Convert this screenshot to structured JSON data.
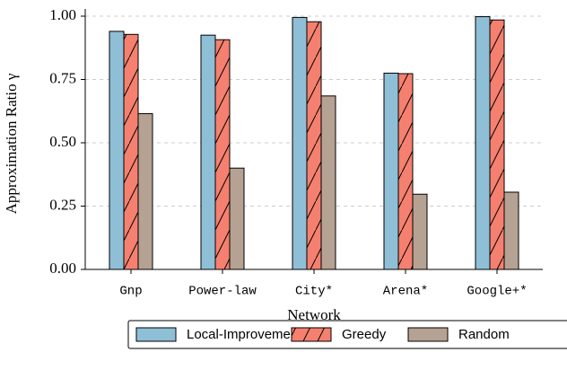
{
  "chart_data": {
    "type": "bar",
    "ylabel": "Approximation Ratio γ",
    "xlabel": "Network",
    "categories": [
      "Gnp",
      "Power-law",
      "City*",
      "Arena*",
      "Google+*"
    ],
    "series": [
      {
        "name": "Local-Improvement",
        "color": "#8fbfd6",
        "hatch": "",
        "values": [
          0.94,
          0.925,
          0.995,
          0.775,
          0.998
        ]
      },
      {
        "name": "Greedy",
        "color": "#f5806f",
        "hatch": "/",
        "values": [
          0.928,
          0.907,
          0.978,
          0.773,
          0.985
        ]
      },
      {
        "name": "Random",
        "color": "#b5a293",
        "hatch": "\\",
        "values": [
          0.615,
          0.4,
          0.685,
          0.297,
          0.305
        ]
      }
    ],
    "ylim": [
      0,
      1.0
    ],
    "yticks": [
      {
        "value": 0,
        "label": "0.00"
      },
      {
        "value": 0.25,
        "label": "0.25"
      },
      {
        "value": 0.5,
        "label": "0.50"
      },
      {
        "value": 0.75,
        "label": "0.75"
      },
      {
        "value": 1.0,
        "label": "1.00"
      }
    ],
    "grid": true
  }
}
